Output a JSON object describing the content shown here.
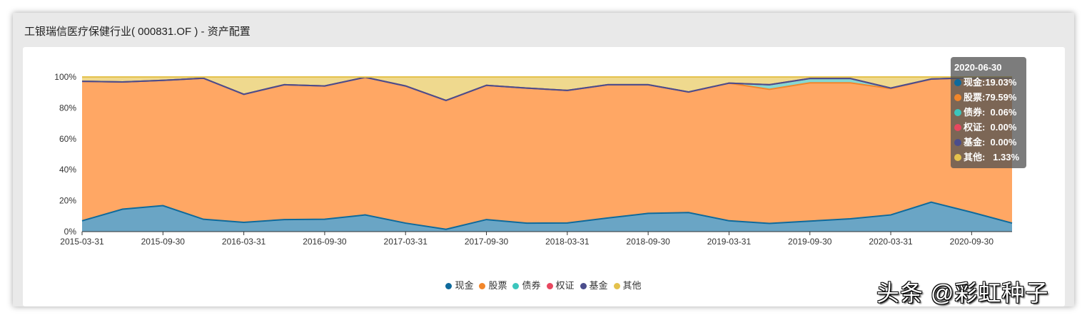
{
  "panel": {
    "title": "工银瑞信医疗保健行业( 000831.OF ) - 资产配置"
  },
  "chart_data": {
    "type": "area",
    "stacked": true,
    "x": [
      "2015-03-31",
      "2015-06-30",
      "2015-09-30",
      "2015-12-31",
      "2016-03-31",
      "2016-06-30",
      "2016-09-30",
      "2016-12-31",
      "2017-03-31",
      "2017-06-30",
      "2017-09-30",
      "2017-12-31",
      "2018-03-31",
      "2018-06-30",
      "2018-09-30",
      "2018-12-31",
      "2019-03-31",
      "2019-06-30",
      "2019-09-30",
      "2019-12-31",
      "2020-03-31",
      "2020-06-30",
      "2020-09-30",
      "2020-12-31"
    ],
    "xticks": [
      "2015-03-31",
      "2015-09-30",
      "2016-03-31",
      "2016-09-30",
      "2017-03-31",
      "2017-09-30",
      "2018-03-31",
      "2018-09-30",
      "2019-03-31",
      "2019-09-30",
      "2020-03-31",
      "2020-09-30"
    ],
    "yticks": [
      "0%",
      "20%",
      "40%",
      "60%",
      "80%",
      "100%"
    ],
    "ylim": [
      0,
      100
    ],
    "series": [
      {
        "name": "现金",
        "color": "#0e6a9c",
        "fill": "#6aa5c5",
        "values": [
          7,
          14.5,
          16.8,
          8,
          6,
          7.8,
          8,
          10.8,
          5.5,
          1.5,
          7.8,
          5.5,
          5.6,
          8.8,
          11.8,
          12.3,
          7,
          5.3,
          6.8,
          8.3,
          10.8,
          19.03,
          12.5,
          5.5
        ]
      },
      {
        "name": "股票",
        "color": "#f2862a",
        "fill": "#ffa764",
        "values": [
          90.2,
          82.3,
          81,
          91.2,
          82.8,
          87.2,
          86.2,
          89,
          88.7,
          83.3,
          86.8,
          87.3,
          85.7,
          86.2,
          83.2,
          78,
          89,
          86.7,
          89.4,
          87.9,
          81.7,
          79.59,
          87,
          94
        ]
      },
      {
        "name": "债券",
        "color": "#3cc6bd",
        "fill": "#86d8d3",
        "values": [
          0,
          0,
          0,
          0,
          0,
          0,
          0,
          0,
          0,
          0,
          0,
          0,
          0,
          0,
          0,
          0,
          0,
          3,
          2.8,
          2.8,
          0.3,
          0.06,
          0,
          0
        ]
      },
      {
        "name": "权证",
        "color": "#e8475f",
        "fill": "#f08a99",
        "values": [
          0,
          0,
          0,
          0,
          0,
          0,
          0,
          0,
          0,
          0,
          0,
          0,
          0,
          0,
          0,
          0,
          0,
          0,
          0,
          0,
          0,
          0,
          0,
          0
        ]
      },
      {
        "name": "基金",
        "color": "#4b4d8c",
        "fill": "#8a8cb8",
        "values": [
          0,
          0,
          0,
          0,
          0,
          0,
          0,
          0,
          0,
          0,
          0,
          0,
          0,
          0,
          0,
          0,
          0,
          0,
          0,
          0,
          0,
          0,
          0,
          0
        ]
      },
      {
        "name": "其他",
        "color": "#e4c24c",
        "fill": "#efd98e",
        "values": [
          2.8,
          3.2,
          2.2,
          0.8,
          11.2,
          5,
          5.8,
          0.2,
          5.8,
          15.2,
          5.4,
          7.2,
          8.7,
          5,
          5,
          9.7,
          4,
          5,
          1,
          1,
          7.2,
          1.33,
          0.5,
          0.5
        ]
      }
    ],
    "legend_position": "bottom",
    "tooltip": {
      "date": "2020-06-30",
      "rows": [
        {
          "label": "现金:19.03%",
          "color": "#0e6a9c"
        },
        {
          "label": "股票:79.59%",
          "color": "#f2862a"
        },
        {
          "label": "债券:  0.06%",
          "color": "#3cc6bd"
        },
        {
          "label": "权证:  0.00%",
          "color": "#e8475f"
        },
        {
          "label": "基金:  0.00%",
          "color": "#4b4d8c"
        },
        {
          "label": "其他:   1.33%",
          "color": "#e4c24c"
        }
      ]
    }
  },
  "watermark": "头条 @彩虹种子"
}
